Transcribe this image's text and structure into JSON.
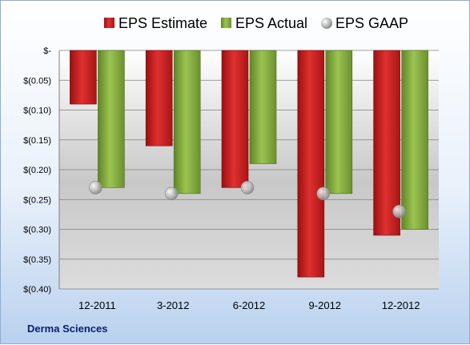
{
  "company": "Derma Sciences",
  "colors": {
    "estimate": "#cc1f1f",
    "actual": "#86ad3c",
    "gaap": "#b0b0b0"
  },
  "chart_data": {
    "type": "bar",
    "title": "",
    "xlabel": "",
    "ylabel": "",
    "categories": [
      "12-2011",
      "3-2012",
      "6-2012",
      "9-2012",
      "12-2012"
    ],
    "ylim": [
      -0.4,
      0
    ],
    "yticks": [
      0,
      -0.05,
      -0.1,
      -0.15,
      -0.2,
      -0.25,
      -0.3,
      -0.35,
      -0.4
    ],
    "ytick_labels": [
      "$-",
      "$(0.05)",
      "$(0.10)",
      "$(0.15)",
      "$(0.20)",
      "$(0.25)",
      "$(0.30)",
      "$(0.35)",
      "$(0.40)"
    ],
    "grid": true,
    "legend_position": "top",
    "series": [
      {
        "name": "EPS Estimate",
        "kind": "bar",
        "values": [
          -0.09,
          -0.16,
          -0.23,
          -0.38,
          -0.31
        ]
      },
      {
        "name": "EPS Actual",
        "kind": "bar",
        "values": [
          -0.23,
          -0.24,
          -0.19,
          -0.24,
          -0.3
        ]
      },
      {
        "name": "EPS GAAP",
        "kind": "marker",
        "values": [
          -0.23,
          -0.24,
          -0.23,
          -0.24,
          -0.27
        ]
      }
    ]
  }
}
